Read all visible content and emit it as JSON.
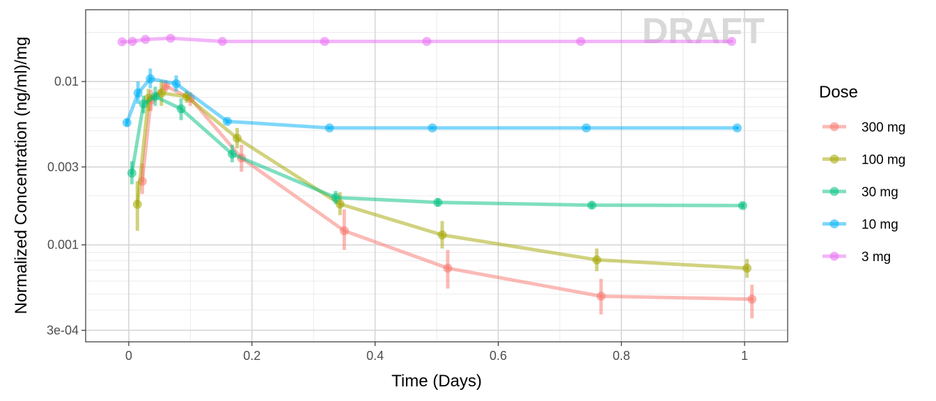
{
  "chart_data": {
    "type": "line",
    "title": "",
    "xlabel": "Time (Days)",
    "ylabel": "Normalized Concentration (ng/ml)/mg",
    "watermark": "DRAFT",
    "x_scale": "linear",
    "y_scale": "log10",
    "xlim": [
      -0.07,
      1.07
    ],
    "ylim": [
      0.000255,
      0.0275
    ],
    "x_ticks": [
      {
        "value": 0,
        "label": "0"
      },
      {
        "value": 0.2,
        "label": "0.2"
      },
      {
        "value": 0.4,
        "label": "0.4"
      },
      {
        "value": 0.6,
        "label": "0.6"
      },
      {
        "value": 0.8,
        "label": "0.8"
      },
      {
        "value": 1,
        "label": "1"
      }
    ],
    "y_ticks": [
      {
        "value": 0.01,
        "label": "0.01"
      },
      {
        "value": 0.003,
        "label": "0.003"
      },
      {
        "value": 0.001,
        "label": "0.001"
      },
      {
        "value": 0.0003,
        "label": "3e-04"
      }
    ],
    "grid": true,
    "legend": {
      "title": "Dose",
      "position": "right"
    },
    "series": [
      {
        "name": "300 mg",
        "color": "#F8766D",
        "points": [
          {
            "x": 0.022,
            "y": 0.00245,
            "lo": 0.00205,
            "hi": 0.00315
          },
          {
            "x": 0.036,
            "y": 0.0077,
            "lo": 0.0066,
            "hi": 0.0089
          },
          {
            "x": 0.06,
            "y": 0.0094,
            "lo": 0.0086,
            "hi": 0.0102
          },
          {
            "x": 0.1,
            "y": 0.0079,
            "lo": 0.0071,
            "hi": 0.0086
          },
          {
            "x": 0.183,
            "y": 0.0034,
            "lo": 0.0028,
            "hi": 0.0041
          },
          {
            "x": 0.35,
            "y": 0.00122,
            "lo": 0.00093,
            "hi": 0.00165
          },
          {
            "x": 0.518,
            "y": 0.00072,
            "lo": 0.00054,
            "hi": 0.00093
          },
          {
            "x": 0.767,
            "y": 0.000485,
            "lo": 0.000375,
            "hi": 0.00062
          },
          {
            "x": 1.012,
            "y": 0.000465,
            "lo": 0.000355,
            "hi": 0.00057
          }
        ]
      },
      {
        "name": "100 mg",
        "color": "#A3A500",
        "points": [
          {
            "x": 0.014,
            "y": 0.00177,
            "lo": 0.00122,
            "hi": 0.00245
          },
          {
            "x": 0.032,
            "y": 0.0079,
            "lo": 0.0066,
            "hi": 0.009
          },
          {
            "x": 0.053,
            "y": 0.0085,
            "lo": 0.0071,
            "hi": 0.0102
          },
          {
            "x": 0.094,
            "y": 0.0081,
            "lo": 0.0074,
            "hi": 0.0088
          },
          {
            "x": 0.176,
            "y": 0.0045,
            "lo": 0.0039,
            "hi": 0.0052
          },
          {
            "x": 0.343,
            "y": 0.00178,
            "lo": 0.00152,
            "hi": 0.0021
          },
          {
            "x": 0.509,
            "y": 0.00115,
            "lo": 0.00095,
            "hi": 0.0014
          },
          {
            "x": 0.76,
            "y": 0.00081,
            "lo": 0.00069,
            "hi": 0.00095
          },
          {
            "x": 1.004,
            "y": 0.00072,
            "lo": 0.00063,
            "hi": 0.00082
          }
        ]
      },
      {
        "name": "30 mg",
        "color": "#00BF7D",
        "points": [
          {
            "x": 0.005,
            "y": 0.00275,
            "lo": 0.00235,
            "hi": 0.00325
          },
          {
            "x": 0.024,
            "y": 0.0073,
            "lo": 0.0064,
            "hi": 0.0082
          },
          {
            "x": 0.043,
            "y": 0.0081,
            "lo": 0.0071,
            "hi": 0.0093
          },
          {
            "x": 0.085,
            "y": 0.0068,
            "lo": 0.0058,
            "hi": 0.0079
          },
          {
            "x": 0.168,
            "y": 0.0036,
            "lo": 0.0032,
            "hi": 0.0041
          },
          {
            "x": 0.336,
            "y": 0.00195,
            "lo": 0.00178,
            "hi": 0.00214
          },
          {
            "x": 0.502,
            "y": 0.00182,
            "lo": 0.00172,
            "hi": 0.00193
          },
          {
            "x": 0.752,
            "y": 0.00175,
            "lo": 0.00167,
            "hi": 0.00183
          },
          {
            "x": 0.997,
            "y": 0.00174,
            "lo": 0.00166,
            "hi": 0.00182
          }
        ]
      },
      {
        "name": "10 mg",
        "color": "#00B0F6",
        "points": [
          {
            "x": -0.003,
            "y": 0.0056,
            "lo": 0.0053,
            "hi": 0.0059
          },
          {
            "x": 0.015,
            "y": 0.0085,
            "lo": 0.0073,
            "hi": 0.01
          },
          {
            "x": 0.035,
            "y": 0.0104,
            "lo": 0.0091,
            "hi": 0.012
          },
          {
            "x": 0.077,
            "y": 0.0097,
            "lo": 0.0087,
            "hi": 0.0109
          },
          {
            "x": 0.16,
            "y": 0.0057,
            "lo": 0.0055,
            "hi": 0.0059
          },
          {
            "x": 0.326,
            "y": 0.0052,
            "lo": 0.0051,
            "hi": 0.0053
          },
          {
            "x": 0.493,
            "y": 0.0052,
            "lo": 0.0051,
            "hi": 0.0053
          },
          {
            "x": 0.743,
            "y": 0.0052,
            "lo": 0.0051,
            "hi": 0.0053
          },
          {
            "x": 0.988,
            "y": 0.0052,
            "lo": 0.0051,
            "hi": 0.0053
          }
        ]
      },
      {
        "name": "3 mg",
        "color": "#E76BF3",
        "points": [
          {
            "x": -0.011,
            "y": 0.0175
          },
          {
            "x": 0.006,
            "y": 0.0176
          },
          {
            "x": 0.027,
            "y": 0.0181
          },
          {
            "x": 0.068,
            "y": 0.0184
          },
          {
            "x": 0.152,
            "y": 0.0176
          },
          {
            "x": 0.318,
            "y": 0.0176
          },
          {
            "x": 0.484,
            "y": 0.0176
          },
          {
            "x": 0.734,
            "y": 0.0176
          },
          {
            "x": 0.979,
            "y": 0.0176
          }
        ]
      }
    ]
  }
}
